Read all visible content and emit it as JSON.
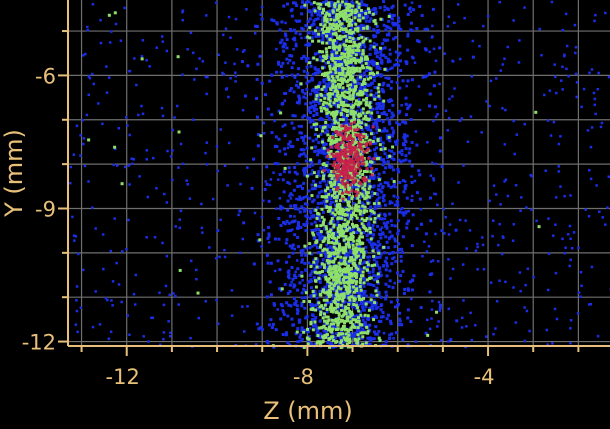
{
  "chart_data": {
    "type": "heatmap",
    "title": "",
    "xlabel": "Z (mm)",
    "ylabel": "Y (mm)",
    "xlim": [
      -13.3,
      -1.3
    ],
    "ylim": [
      -12.1,
      -4.3
    ],
    "x_ticks": [
      -12,
      -8,
      -4
    ],
    "y_ticks": [
      -6,
      -9,
      -12
    ],
    "grid": true,
    "colors": {
      "background": "#000000",
      "grid": "#6f6f6f",
      "axis": "#e8c079",
      "low": "#1a2ee8",
      "mid": "#8ee06a",
      "high": "#c8204a"
    },
    "density_core": [
      {
        "z": -7.3,
        "y": -4.3,
        "level": "mid"
      },
      {
        "z": -7.2,
        "y": -6.0,
        "level": "mid"
      },
      {
        "z": -7.1,
        "y": -7.8,
        "level": "high"
      },
      {
        "z": -7.2,
        "y": -9.5,
        "level": "mid"
      },
      {
        "z": -7.3,
        "y": -12.0,
        "level": "mid"
      }
    ]
  }
}
